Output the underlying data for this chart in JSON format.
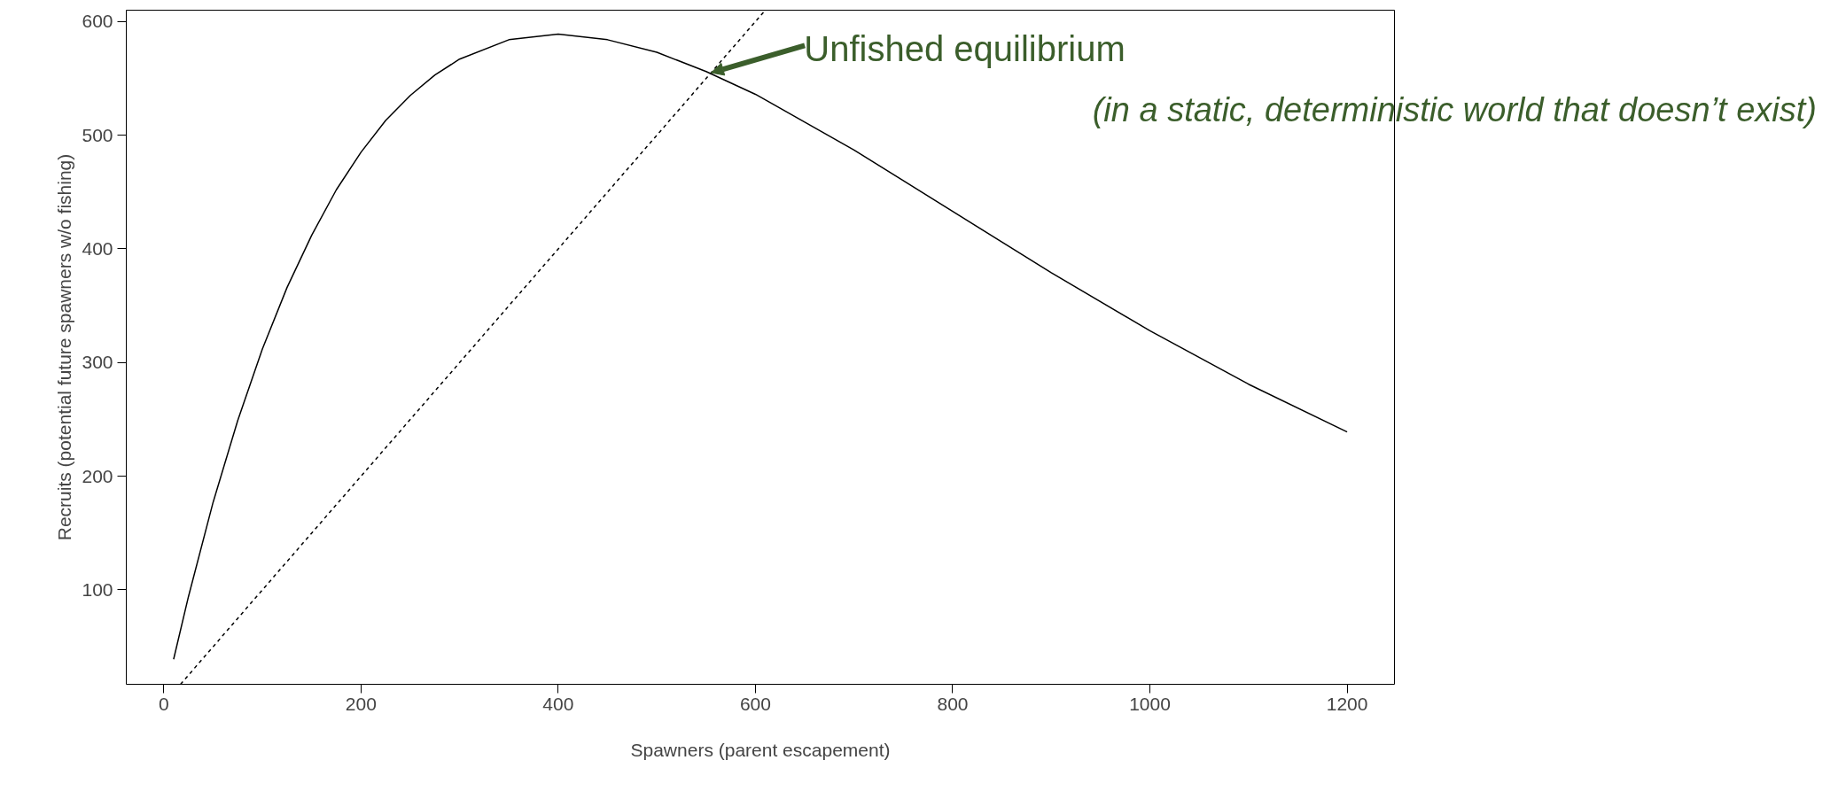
{
  "chart_data": {
    "type": "line",
    "xlabel": "Spawners (parent escapement)",
    "ylabel": "Recruits (potential future spawners w/o fishing)",
    "xlim": [
      -38,
      1248
    ],
    "ylim": [
      17,
      610
    ],
    "xticks": [
      0,
      200,
      400,
      600,
      800,
      1000,
      1200
    ],
    "yticks": [
      100,
      200,
      300,
      400,
      500,
      600
    ],
    "grid": false,
    "marker": "none",
    "series": [
      {
        "color": "#000000",
        "line_style": "solid",
        "x": [
          10,
          25,
          50,
          75,
          100,
          125,
          150,
          175,
          200,
          225,
          250,
          275,
          300,
          350,
          400,
          450,
          500,
          550,
          600,
          700,
          800,
          900,
          1000,
          1100,
          1200
        ],
        "values": [
          39,
          94,
          177,
          249,
          312,
          366,
          412,
          452,
          485,
          513,
          535,
          553,
          567,
          584,
          589,
          584,
          573,
          556,
          536,
          487,
          433,
          379,
          328,
          281,
          239
        ]
      },
      {
        "color": "#000000",
        "line_style": "dashed",
        "x": [
          17,
          610
        ],
        "values": [
          17,
          610
        ]
      }
    ],
    "annotations": [
      {
        "text": "Unfished equilibrium",
        "x": 555,
        "y": 555
      },
      "(in a static, deterministic world that doesn’t exist)"
    ]
  }
}
